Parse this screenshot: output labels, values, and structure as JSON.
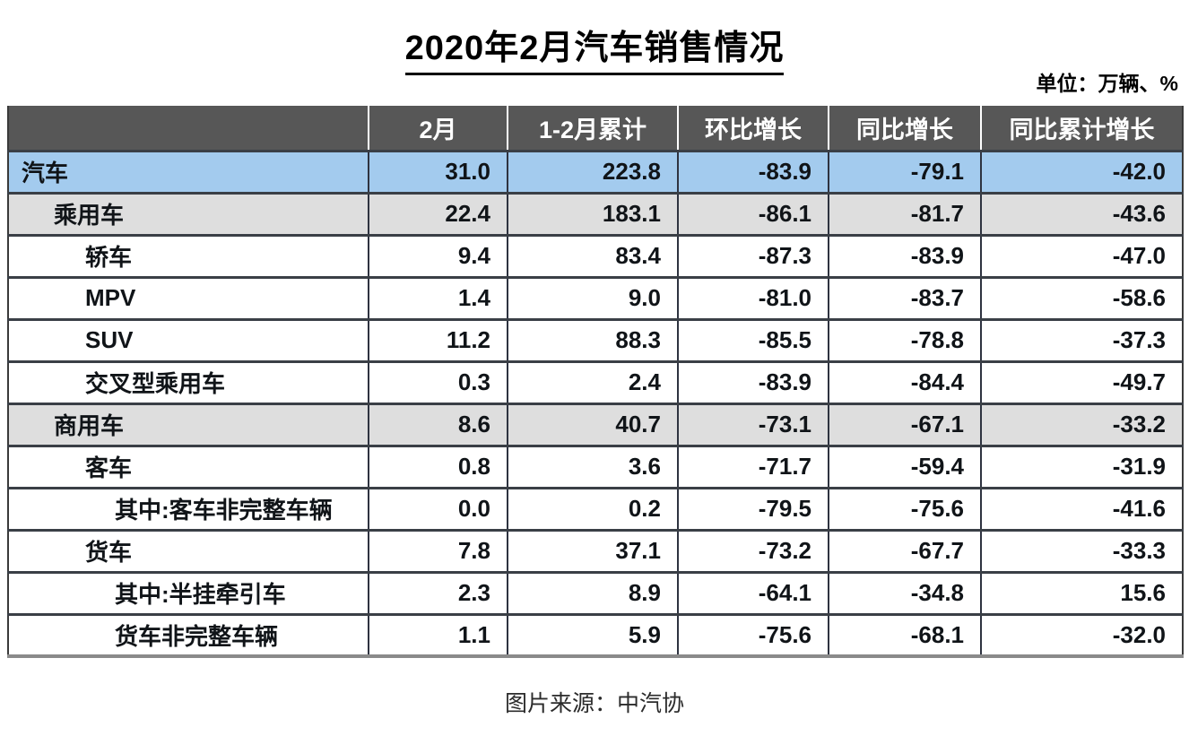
{
  "chart_data": {
    "type": "table",
    "title": "2020年2月汽车销售情况",
    "unit_label": "单位：万辆、%",
    "source_caption": "图片来源：中汽协",
    "columns": [
      "",
      "2月",
      "1-2月累计",
      "环比增长",
      "同比增长",
      "同比累计增长"
    ],
    "rows": [
      {
        "label": "汽车",
        "indent": 0,
        "highlight": "blue",
        "values": [
          "31.0",
          "223.8",
          "-83.9",
          "-79.1",
          "-42.0"
        ]
      },
      {
        "label": "乘用车",
        "indent": 1,
        "highlight": "gray",
        "values": [
          "22.4",
          "183.1",
          "-86.1",
          "-81.7",
          "-43.6"
        ]
      },
      {
        "label": "轿车",
        "indent": 2,
        "highlight": "none",
        "values": [
          "9.4",
          "83.4",
          "-87.3",
          "-83.9",
          "-47.0"
        ]
      },
      {
        "label": "MPV",
        "indent": 2,
        "highlight": "none",
        "values": [
          "1.4",
          "9.0",
          "-81.0",
          "-83.7",
          "-58.6"
        ]
      },
      {
        "label": "SUV",
        "indent": 2,
        "highlight": "none",
        "values": [
          "11.2",
          "88.3",
          "-85.5",
          "-78.8",
          "-37.3"
        ]
      },
      {
        "label": "交叉型乘用车",
        "indent": 2,
        "highlight": "none",
        "values": [
          "0.3",
          "2.4",
          "-83.9",
          "-84.4",
          "-49.7"
        ]
      },
      {
        "label": "商用车",
        "indent": 1,
        "highlight": "gray",
        "values": [
          "8.6",
          "40.7",
          "-73.1",
          "-67.1",
          "-33.2"
        ]
      },
      {
        "label": "客车",
        "indent": 2,
        "highlight": "none",
        "values": [
          "0.8",
          "3.6",
          "-71.7",
          "-59.4",
          "-31.9"
        ]
      },
      {
        "label": "其中:客车非完整车辆",
        "indent": 3,
        "highlight": "none",
        "values": [
          "0.0",
          "0.2",
          "-79.5",
          "-75.6",
          "-41.6"
        ]
      },
      {
        "label": "货车",
        "indent": 2,
        "highlight": "none",
        "values": [
          "7.8",
          "37.1",
          "-73.2",
          "-67.7",
          "-33.3"
        ]
      },
      {
        "label": "其中:半挂牵引车",
        "indent": 3,
        "highlight": "none",
        "values": [
          "2.3",
          "8.9",
          "-64.1",
          "-34.8",
          "15.6"
        ]
      },
      {
        "label": "货车非完整车辆",
        "indent": 3,
        "highlight": "none",
        "values": [
          "1.1",
          "5.9",
          "-75.6",
          "-68.1",
          "-32.0"
        ]
      }
    ]
  },
  "colors": {
    "header_bg": "#575757",
    "header_text": "#ffffff",
    "row_highlight_blue": "#a3cbee",
    "row_highlight_gray": "#dedede",
    "row_default": "#ffffff",
    "border_dark": "#3a3f46",
    "title_text": "#000000"
  }
}
